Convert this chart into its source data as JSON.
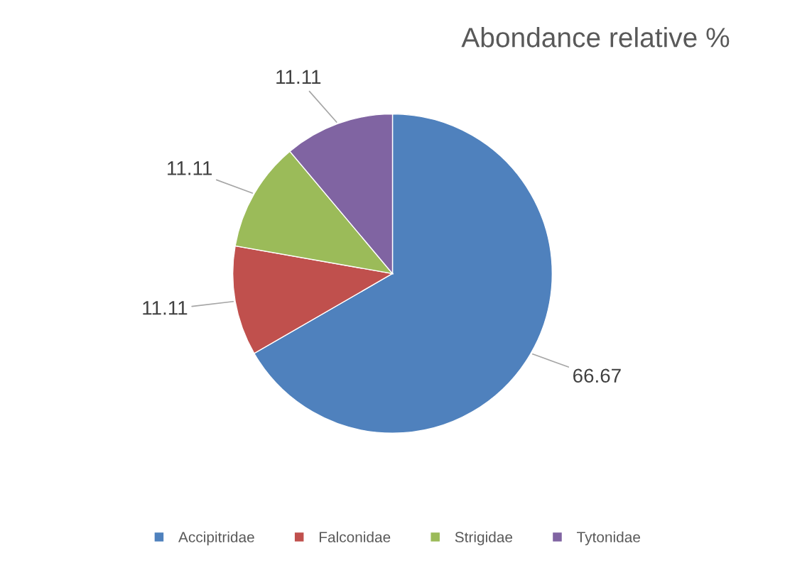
{
  "chart_data": {
    "type": "pie",
    "title": "Abondance relative %",
    "categories": [
      "Accipitridae",
      "Falconidae",
      "Strigidae",
      "Tytonidae"
    ],
    "values": [
      66.67,
      11.11,
      11.11,
      11.11
    ],
    "colors": [
      "#4f81bd",
      "#c0504d",
      "#9bbb59",
      "#8064a2"
    ],
    "data_labels": true,
    "legend": "bottom"
  }
}
